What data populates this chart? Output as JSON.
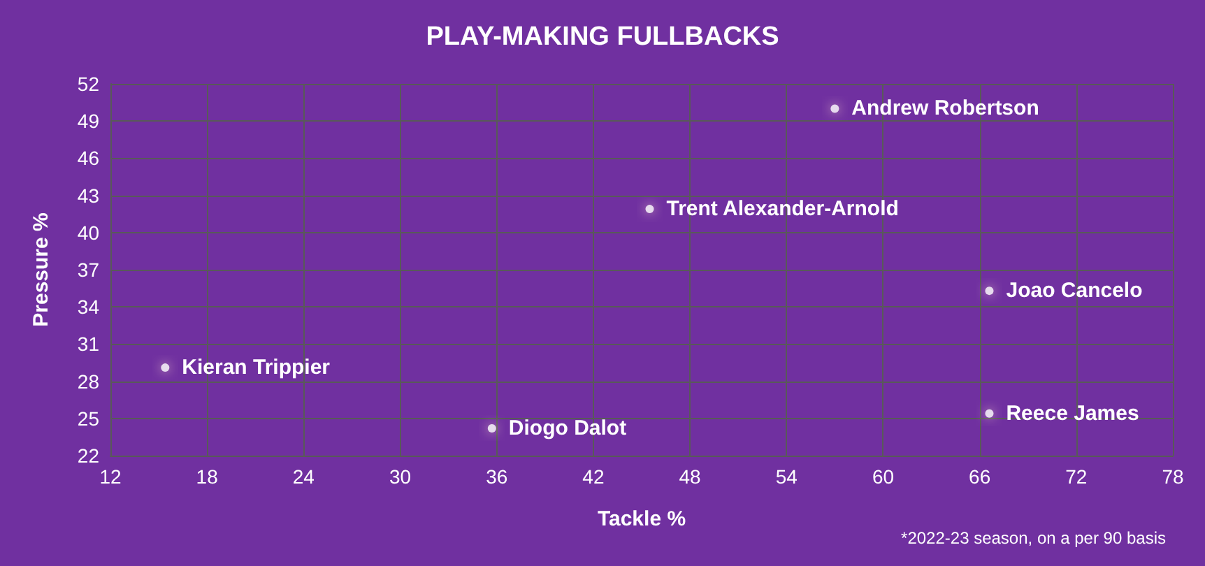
{
  "chart_data": {
    "type": "scatter",
    "title": "PLAY-MAKING FULLBACKS",
    "xlabel": "Tackle %",
    "ylabel": "Pressure %",
    "x": [
      57.0,
      45.5,
      66.6,
      15.4,
      35.7,
      66.6
    ],
    "values": [
      50.0,
      41.9,
      35.3,
      29.1,
      24.2,
      25.4
    ],
    "color": "#ffffff",
    "marker": "circle",
    "grid": true,
    "xlim": [
      12,
      78
    ],
    "xticks": [
      12,
      18,
      24,
      30,
      36,
      42,
      48,
      54,
      60,
      66,
      72,
      78
    ],
    "ylim": [
      22,
      52
    ],
    "yticks": [
      22,
      25,
      28,
      31,
      34,
      37,
      40,
      43,
      46,
      49,
      52
    ],
    "annotations": [
      {
        "text": "Andrew Robertson",
        "x": 57.0,
        "y": 50.0
      },
      {
        "text": "Trent Alexander-Arnold",
        "x": 45.5,
        "y": 41.9
      },
      {
        "text": "Joao Cancelo",
        "x": 66.6,
        "y": 35.3
      },
      {
        "text": "Kieran Trippier",
        "x": 15.4,
        "y": 29.1
      },
      {
        "text": "Diogo Dalot",
        "x": 35.7,
        "y": 24.2
      },
      {
        "text": "Reece James",
        "x": 66.6,
        "y": 25.4
      },
      "*2022-23 season, on a per 90 basis"
    ]
  }
}
